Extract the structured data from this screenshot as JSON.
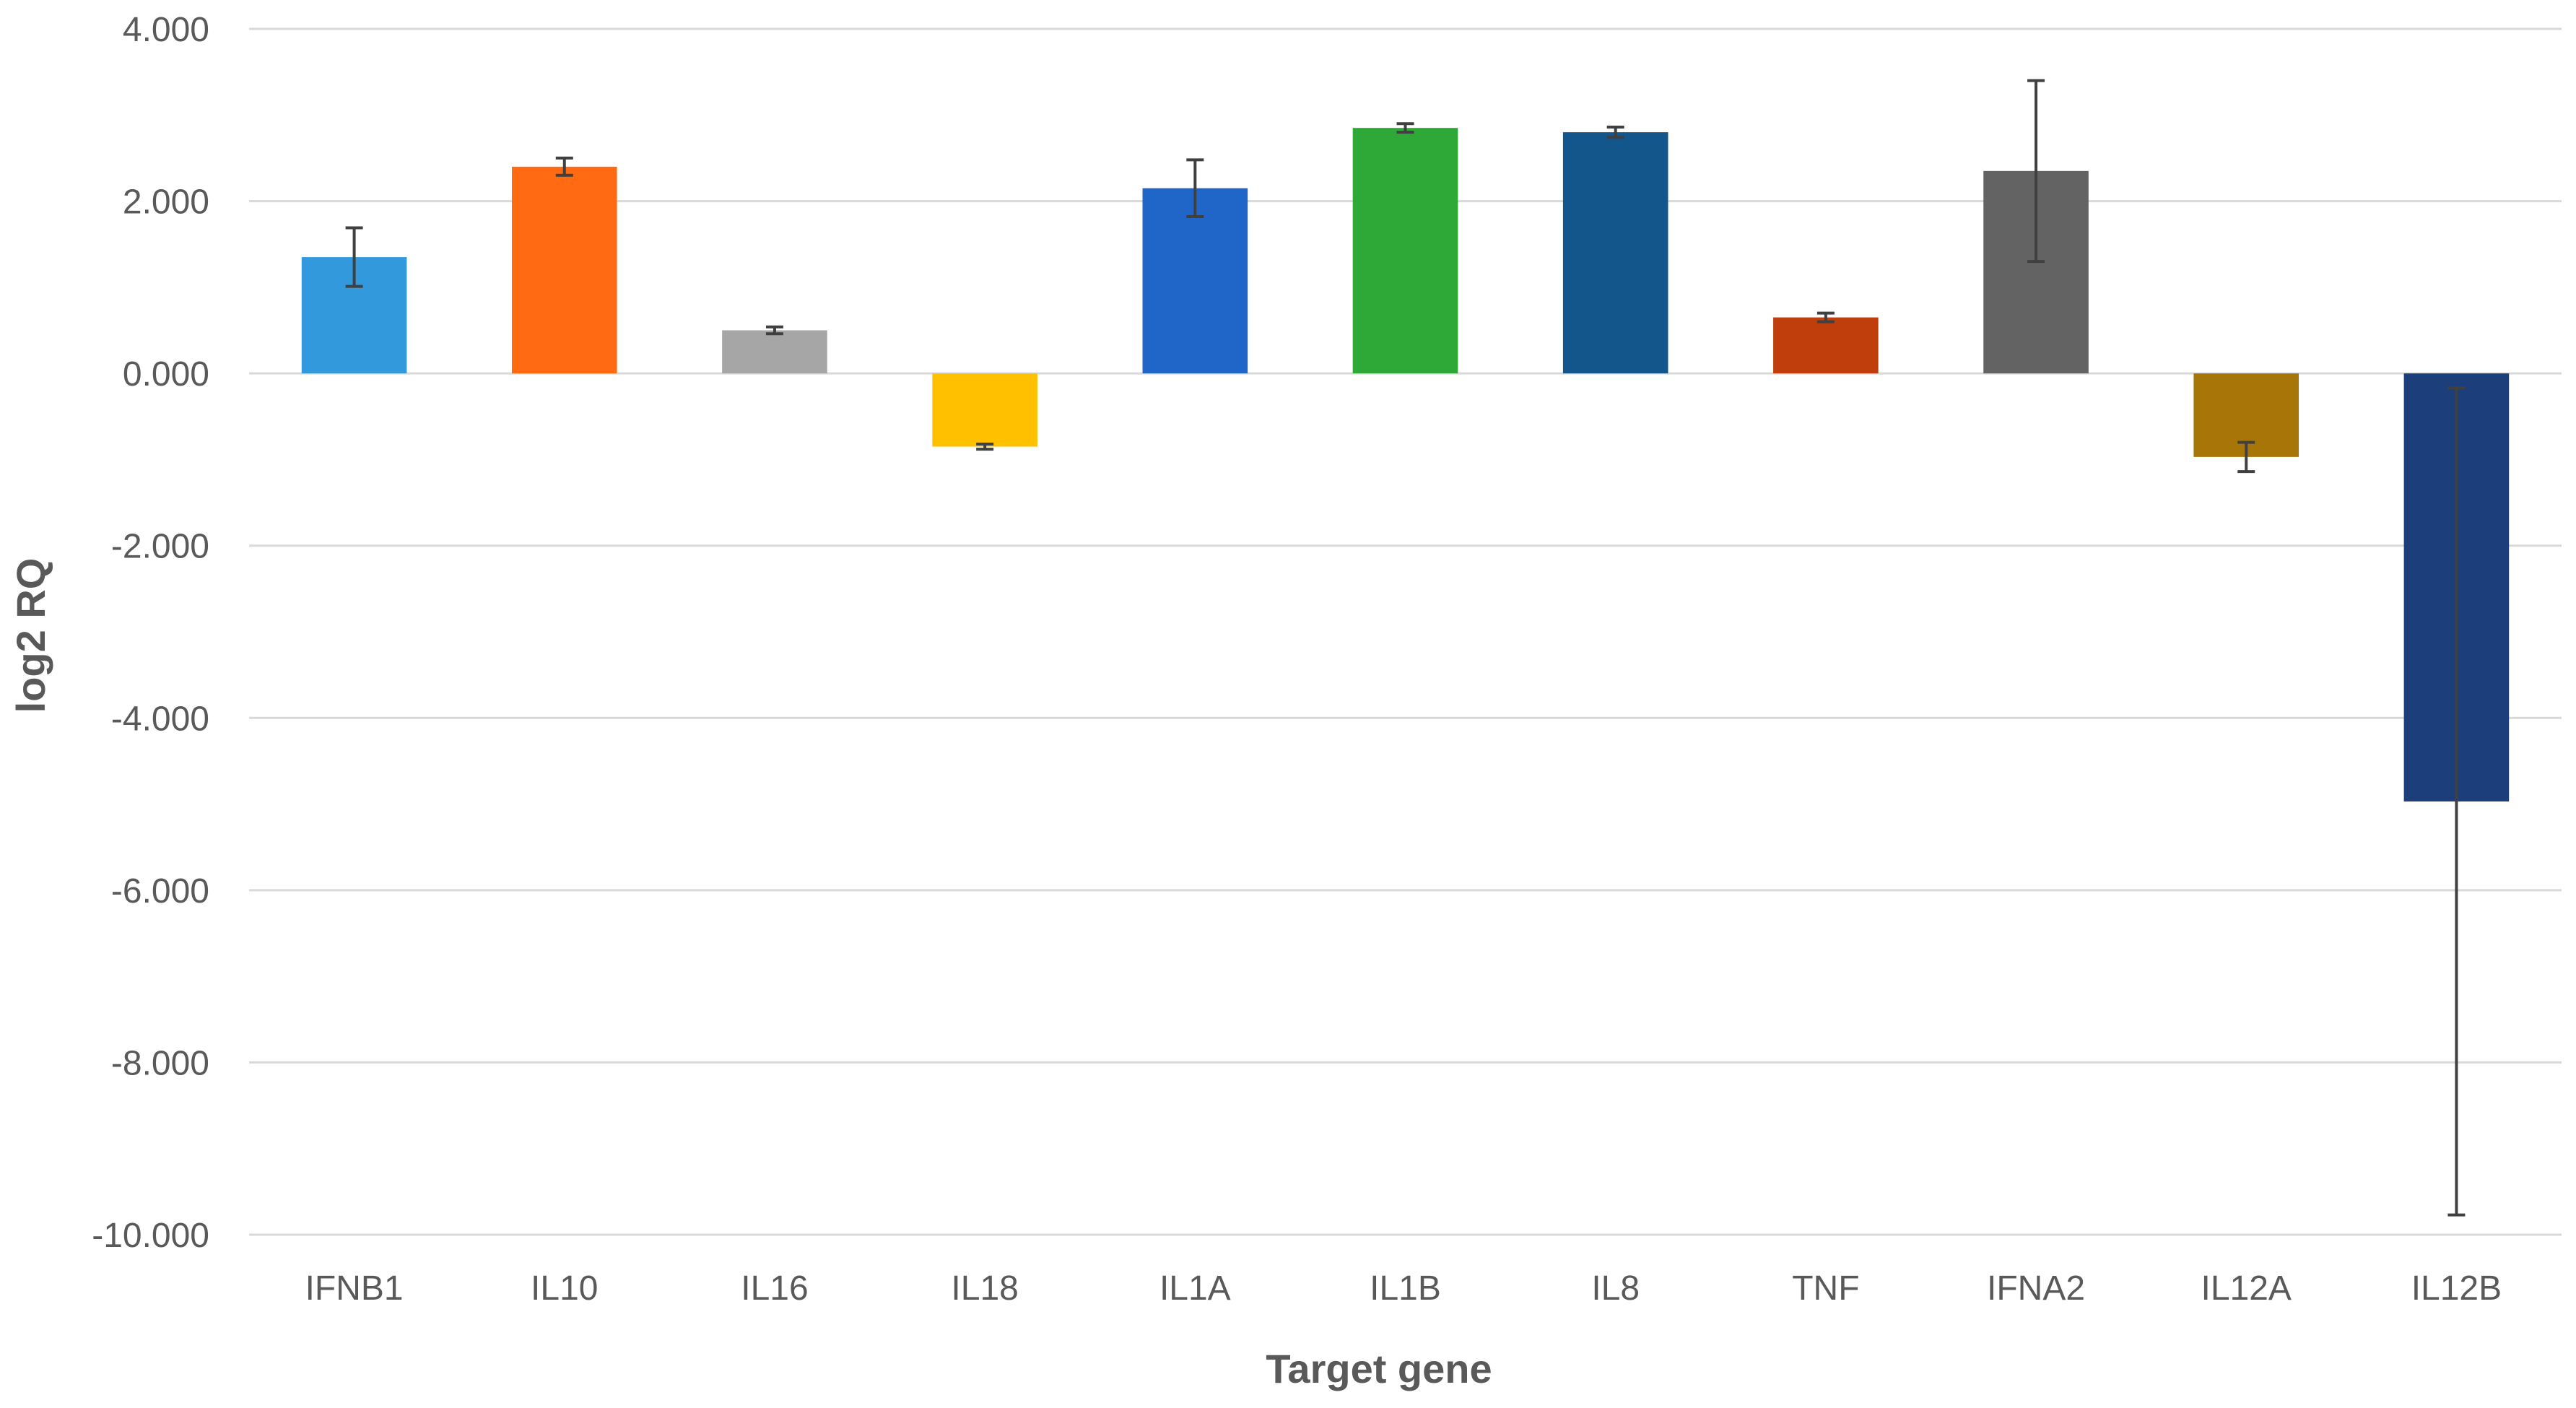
{
  "chart_data": {
    "type": "bar",
    "title": "",
    "xlabel": "Target gene",
    "ylabel": "log2 RQ",
    "ylim": [
      -10,
      4
    ],
    "yticks": [
      4,
      2,
      0,
      -2,
      -4,
      -6,
      -8,
      -10
    ],
    "ytick_labels": [
      "4.000",
      "2.000",
      "0.000",
      "-2.000",
      "-4.000",
      "-6.000",
      "-8.000",
      "-10.000"
    ],
    "grid": true,
    "legend": "none",
    "categories": [
      "IFNB1",
      "IL10",
      "IL16",
      "IL18",
      "IL1A",
      "IL1B",
      "IL8",
      "TNF",
      "IFNA2",
      "IL12A",
      "IL12B"
    ],
    "values": [
      1.35,
      2.4,
      0.5,
      -0.85,
      2.15,
      2.85,
      2.8,
      0.65,
      2.35,
      -0.97,
      -4.97
    ],
    "errors": [
      0.34,
      0.1,
      0.04,
      0.03,
      0.33,
      0.05,
      0.06,
      0.05,
      1.05,
      0.17,
      4.8
    ],
    "colors": [
      "#3399dd",
      "#ff6a13",
      "#a6a6a6",
      "#ffc000",
      "#1f66c8",
      "#2ea836",
      "#12568c",
      "#c03e0b",
      "#636363",
      "#a87508",
      "#1c3e7a"
    ]
  }
}
